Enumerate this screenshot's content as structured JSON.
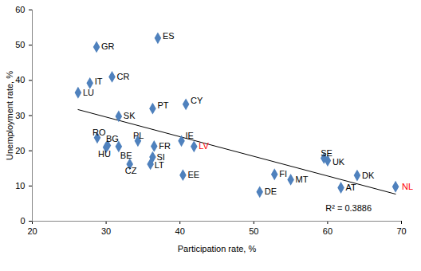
{
  "chart_data": {
    "type": "scatter",
    "x_label": "Participation rate, %",
    "y_label": "Unemployment rate, %",
    "xlim": [
      20,
      70
    ],
    "xticks": [
      20,
      30,
      40,
      50,
      60,
      70
    ],
    "ylim": [
      0,
      60
    ],
    "yticks": [
      0,
      10,
      20,
      30,
      40,
      50,
      60
    ],
    "grid": false,
    "marker": "diamond",
    "color": "#4f81bd",
    "labels": [
      "ES",
      "GR",
      "CR",
      "IT",
      "LU",
      "CY",
      "PT",
      "SK",
      "RO",
      "BG",
      "HU",
      "BE",
      "PL",
      "FR",
      "CZ",
      "SI",
      "LT",
      "IE",
      "LV",
      "EE",
      "DE",
      "FI",
      "MT",
      "SE",
      "UK",
      "DK",
      "AT",
      "NL"
    ],
    "x": [
      37.0,
      28.7,
      30.8,
      27.8,
      26.2,
      40.8,
      36.3,
      31.7,
      28.8,
      30.2,
      30.0,
      31.7,
      34.3,
      36.5,
      33.2,
      36.3,
      36.0,
      40.2,
      41.9,
      40.4,
      50.8,
      52.8,
      55.0,
      59.5,
      60.0,
      64.0,
      61.8,
      69.2
    ],
    "values": [
      52.0,
      49.5,
      41.0,
      39.2,
      36.5,
      33.2,
      32.0,
      29.8,
      23.7,
      21.5,
      21.0,
      21.2,
      22.8,
      21.3,
      16.2,
      18.2,
      16.2,
      22.8,
      21.2,
      13.1,
      8.3,
      13.3,
      11.8,
      17.9,
      17.2,
      13.0,
      9.5,
      9.8
    ],
    "label_colors": [
      "#000000",
      "#000000",
      "#000000",
      "#000000",
      "#000000",
      "#000000",
      "#000000",
      "#000000",
      "#000000",
      "#000000",
      "#000000",
      "#000000",
      "#000000",
      "#000000",
      "#000000",
      "#000000",
      "#000000",
      "#000000",
      "#ff0000",
      "#000000",
      "#000000",
      "#000000",
      "#000000",
      "#000000",
      "#000000",
      "#000000",
      "#000000",
      "#ff0000"
    ],
    "trendline": {
      "x": [
        26.2,
        69.2
      ],
      "values": [
        31.7,
        7.7
      ],
      "color": "#000000"
    },
    "annotation": "R² = 0.3886"
  }
}
